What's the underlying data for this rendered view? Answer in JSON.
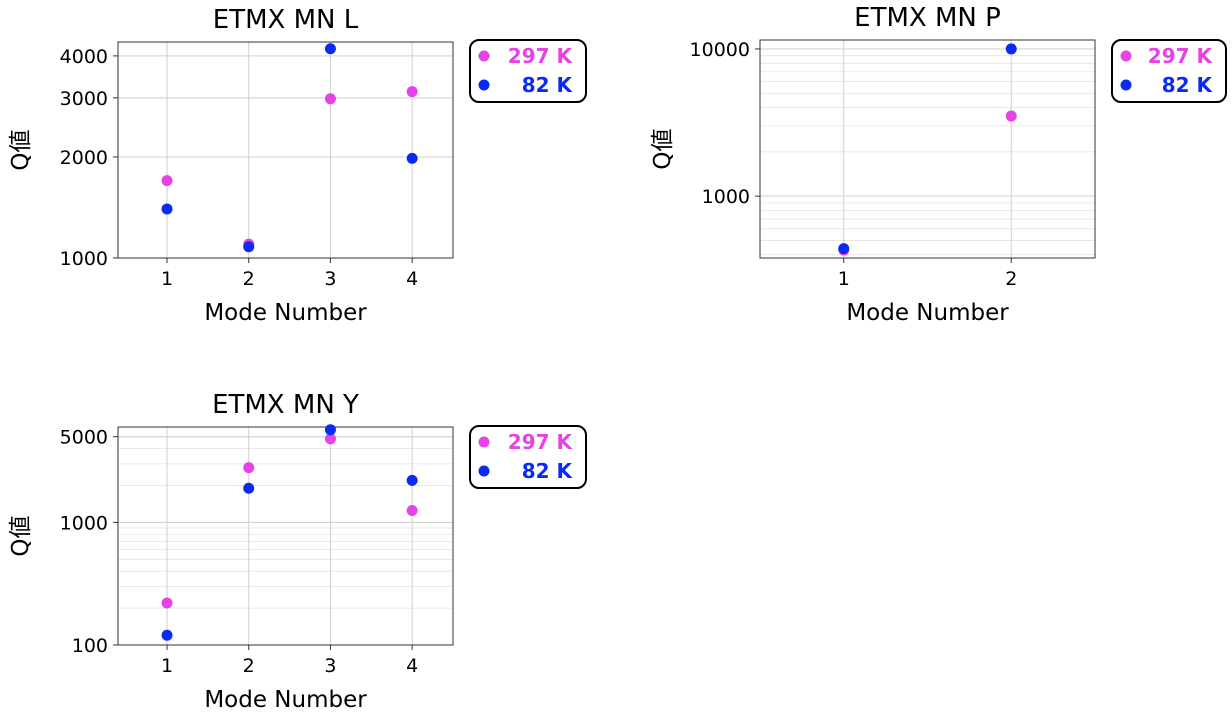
{
  "chart_data": [
    {
      "type": "scatter",
      "title": "ETMX MN L",
      "xlabel": "Mode Number",
      "ylabel": "Q値",
      "yscale": "log",
      "xlim": [
        0.4,
        4.5
      ],
      "ylim": [
        1000,
        4400
      ],
      "xticks": [
        1,
        2,
        3,
        4
      ],
      "yticks": [
        1000,
        2000,
        3000,
        4000
      ],
      "ytick_labels": [
        "1000",
        "2000",
        "3000",
        "4000"
      ],
      "grid": true,
      "legend": "outside-right-top",
      "series": [
        {
          "name": "297 K",
          "color": "#e642e6",
          "x": [
            1,
            2,
            3,
            4
          ],
          "y": [
            1700,
            1100,
            2980,
            3130
          ]
        },
        {
          "name": "82 K",
          "color": "#0a2af5",
          "x": [
            1,
            2,
            3,
            4
          ],
          "y": [
            1400,
            1080,
            4200,
            1980
          ]
        }
      ]
    },
    {
      "type": "scatter",
      "title": "ETMX MN P",
      "xlabel": "Mode Number",
      "ylabel": "Q値",
      "yscale": "log",
      "xlim": [
        0.5,
        2.5
      ],
      "ylim": [
        380,
        11500
      ],
      "xticks": [
        1,
        2
      ],
      "yticks": [
        1000,
        10000
      ],
      "ytick_labels": [
        "1000",
        "10000"
      ],
      "grid": true,
      "legend": "outside-right-top",
      "series": [
        {
          "name": "297 K",
          "color": "#e642e6",
          "x": [
            1,
            2
          ],
          "y": [
            430,
            3500
          ]
        },
        {
          "name": "82 K",
          "color": "#0a2af5",
          "x": [
            1,
            2
          ],
          "y": [
            440,
            10000
          ]
        }
      ]
    },
    {
      "type": "scatter",
      "title": "ETMX MN Y",
      "xlabel": "Mode Number",
      "ylabel": "Q値",
      "yscale": "log",
      "xlim": [
        0.4,
        4.5
      ],
      "ylim": [
        100,
        6000
      ],
      "xticks": [
        1,
        2,
        3,
        4
      ],
      "yticks": [
        100,
        1000,
        5000
      ],
      "ytick_labels": [
        "100",
        "1000",
        "5000"
      ],
      "grid": true,
      "legend": "outside-right-top",
      "series": [
        {
          "name": "297 K",
          "color": "#e642e6",
          "x": [
            1,
            2,
            3,
            4
          ],
          "y": [
            220,
            2800,
            4800,
            1250
          ]
        },
        {
          "name": "82 K",
          "color": "#0a2af5",
          "x": [
            1,
            2,
            3,
            4
          ],
          "y": [
            120,
            1900,
            5700,
            2200
          ]
        }
      ]
    }
  ]
}
